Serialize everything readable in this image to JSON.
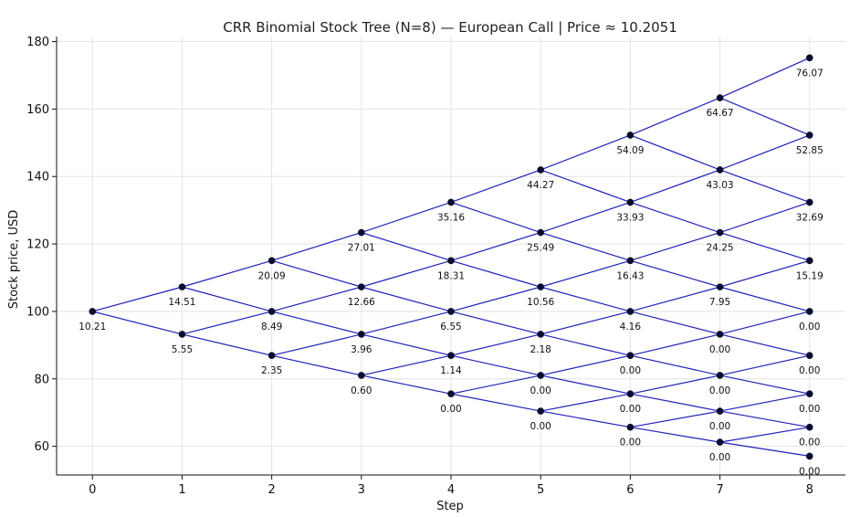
{
  "chart_data": {
    "type": "scatter",
    "title": "CRR Binomial Stock Tree (N=8) — European Call | Price ≈ 10.2051",
    "xlabel": "Step",
    "ylabel": "Stock price, USD",
    "xlim": [
      -0.4,
      8.4
    ],
    "ylim": [
      51.5,
      181.5
    ],
    "x_ticks": [
      0,
      1,
      2,
      3,
      4,
      5,
      6,
      7,
      8
    ],
    "x_tick_labels": [
      "0",
      "1",
      "2",
      "3",
      "4",
      "5",
      "6",
      "7",
      "8"
    ],
    "y_ticks": [
      60,
      80,
      100,
      120,
      140,
      160,
      180
    ],
    "y_tick_labels": [
      "60",
      "80",
      "100",
      "120",
      "140",
      "160",
      "180"
    ],
    "grid": true,
    "colors": {
      "edge": "#1f22b8",
      "node": "#0b0b2e",
      "grid": "#e3e3e3"
    },
    "steps": 8,
    "up_factor": 1.0726,
    "nodes": [
      [
        {
          "stock": 100.0,
          "option": "10.21"
        }
      ],
      [
        {
          "stock": 107.26,
          "option": "14.51"
        },
        {
          "stock": 93.23,
          "option": "5.55"
        }
      ],
      [
        {
          "stock": 115.05,
          "option": "20.09"
        },
        {
          "stock": 100.0,
          "option": "8.49"
        },
        {
          "stock": 86.92,
          "option": "2.35"
        }
      ],
      [
        {
          "stock": 123.4,
          "option": "27.01"
        },
        {
          "stock": 107.26,
          "option": "12.66"
        },
        {
          "stock": 93.23,
          "option": "3.96"
        },
        {
          "stock": 81.04,
          "option": "0.60"
        }
      ],
      [
        {
          "stock": 132.36,
          "option": "35.16"
        },
        {
          "stock": 115.05,
          "option": "18.31"
        },
        {
          "stock": 100.0,
          "option": "6.55"
        },
        {
          "stock": 86.92,
          "option": "1.14"
        },
        {
          "stock": 75.55,
          "option": "0.00"
        }
      ],
      [
        {
          "stock": 141.97,
          "option": "44.27"
        },
        {
          "stock": 123.4,
          "option": "25.49"
        },
        {
          "stock": 107.26,
          "option": "10.56"
        },
        {
          "stock": 93.23,
          "option": "2.18"
        },
        {
          "stock": 81.04,
          "option": "0.00"
        },
        {
          "stock": 70.44,
          "option": "0.00"
        }
      ],
      [
        {
          "stock": 152.28,
          "option": "54.09"
        },
        {
          "stock": 132.36,
          "option": "33.93"
        },
        {
          "stock": 115.05,
          "option": "16.43"
        },
        {
          "stock": 100.0,
          "option": "4.16"
        },
        {
          "stock": 86.92,
          "option": "0.00"
        },
        {
          "stock": 75.55,
          "option": "0.00"
        },
        {
          "stock": 65.67,
          "option": "0.00"
        }
      ],
      [
        {
          "stock": 163.34,
          "option": "64.67"
        },
        {
          "stock": 141.97,
          "option": "43.03"
        },
        {
          "stock": 123.4,
          "option": "24.25"
        },
        {
          "stock": 107.26,
          "option": "7.95"
        },
        {
          "stock": 93.23,
          "option": "0.00"
        },
        {
          "stock": 81.04,
          "option": "0.00"
        },
        {
          "stock": 70.44,
          "option": "0.00"
        },
        {
          "stock": 61.22,
          "option": "0.00"
        }
      ],
      [
        {
          "stock": 175.19,
          "option": "76.07"
        },
        {
          "stock": 152.28,
          "option": "52.85"
        },
        {
          "stock": 132.36,
          "option": "32.69"
        },
        {
          "stock": 115.05,
          "option": "15.19"
        },
        {
          "stock": 100.0,
          "option": "0.00"
        },
        {
          "stock": 86.92,
          "option": "0.00"
        },
        {
          "stock": 75.55,
          "option": "0.00"
        },
        {
          "stock": 65.67,
          "option": "0.00"
        },
        {
          "stock": 57.08,
          "option": "0.00"
        }
      ]
    ]
  }
}
